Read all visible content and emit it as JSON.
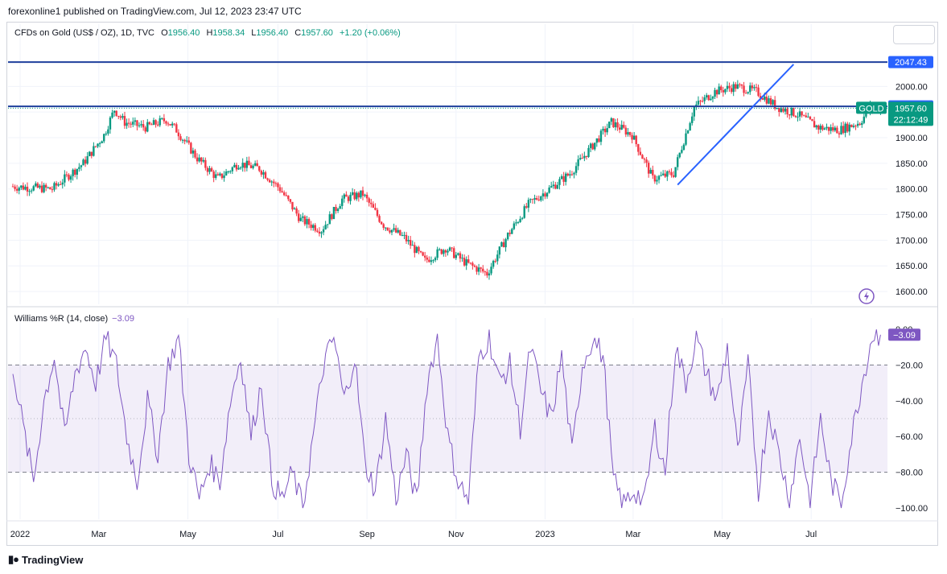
{
  "header": {
    "published": "forexonline1 published on TradingView.com, Jul 12, 2023 23:47 UTC"
  },
  "legend": {
    "symbol": "CFDs on Gold (US$ / OZ), 1D, TVC",
    "o_label": "O",
    "o": "1956.40",
    "h_label": "H",
    "h": "1958.34",
    "l_label": "L",
    "l": "1956.40",
    "c_label": "C",
    "c": "1957.60",
    "change": "+1.20 (+0.06%)"
  },
  "indicator": {
    "name": "Williams %R (14, close)",
    "value": "−3.09"
  },
  "footer": {
    "brand": "TradingView",
    "logo": "tradingview-logo-icon"
  },
  "colors": {
    "up": "#089981",
    "down": "#f23645",
    "line": "#2962ff",
    "hline": "#1e3f9c",
    "wr": "#7e57c2",
    "band": "#7e57c2"
  },
  "chart_data": [
    {
      "type": "candlestick",
      "title": "CFDs on Gold (US$ / OZ), 1D, TVC",
      "x_ticks": [
        "2022",
        "Mar",
        "May",
        "Jul",
        "Sep",
        "Nov",
        "2023",
        "Mar",
        "May",
        "Jul"
      ],
      "y_ticks": [
        "1600.00",
        "1650.00",
        "1700.00",
        "1750.00",
        "1800.00",
        "1850.00",
        "1900.00",
        "1950.00",
        "2000.00"
      ],
      "ylim": [
        1575,
        2090
      ],
      "close_anchors_per_week_index": [
        [
          0,
          1805
        ],
        [
          4,
          1800
        ],
        [
          7,
          1850
        ],
        [
          9,
          1905
        ],
        [
          10,
          1955
        ],
        [
          11,
          1930
        ],
        [
          13,
          1920
        ],
        [
          15,
          1935
        ],
        [
          16,
          1915
        ],
        [
          18,
          1860
        ],
        [
          20,
          1820
        ],
        [
          22,
          1850
        ],
        [
          24,
          1840
        ],
        [
          26,
          1800
        ],
        [
          28,
          1740
        ],
        [
          30,
          1720
        ],
        [
          32,
          1780
        ],
        [
          34,
          1790
        ],
        [
          36,
          1730
        ],
        [
          38,
          1705
        ],
        [
          40,
          1660
        ],
        [
          42,
          1685
        ],
        [
          44,
          1655
        ],
        [
          46,
          1635
        ],
        [
          48,
          1710
        ],
        [
          50,
          1770
        ],
        [
          52,
          1800
        ],
        [
          54,
          1830
        ],
        [
          56,
          1880
        ],
        [
          58,
          1930
        ],
        [
          60,
          1905
        ],
        [
          62,
          1820
        ],
        [
          64,
          1830
        ],
        [
          66,
          1960
        ],
        [
          68,
          1990
        ],
        [
          70,
          2000
        ],
        [
          72,
          1990
        ],
        [
          74,
          1960
        ],
        [
          76,
          1945
        ],
        [
          78,
          1920
        ],
        [
          80,
          1915
        ],
        [
          82,
          1930
        ],
        [
          83,
          1957.6
        ]
      ],
      "horizontal_lines": [
        {
          "price": 2047.43,
          "label": "2047.43"
        },
        {
          "price": 1961.01,
          "label": "1961.01"
        }
      ],
      "trendline": {
        "from_week": 64.2,
        "from_price": 1808,
        "to_week": 75.4,
        "to_price": 2043
      },
      "last_price": {
        "label": "GOLD",
        "price": "1957.60",
        "countdown": "22:12:49"
      },
      "weeks": 84
    },
    {
      "type": "line",
      "title": "Williams %R (14, close)",
      "ylim": [
        -104,
        4
      ],
      "y_ticks": [
        "0.00",
        "−20.00",
        "−40.00",
        "−60.00",
        "−80.00",
        "−100.00"
      ],
      "levels": {
        "upper": -20,
        "mid": -50,
        "lower": -80
      },
      "anchors_per_week_index": [
        [
          0,
          -20
        ],
        [
          1,
          -55
        ],
        [
          2,
          -85
        ],
        [
          3,
          -40
        ],
        [
          4,
          -15
        ],
        [
          5,
          -60
        ],
        [
          6,
          -25
        ],
        [
          7,
          -10
        ],
        [
          8,
          -30
        ],
        [
          9,
          -5
        ],
        [
          10,
          -20
        ],
        [
          11,
          -60
        ],
        [
          12,
          -85
        ],
        [
          13,
          -40
        ],
        [
          14,
          -70
        ],
        [
          15,
          -20
        ],
        [
          16,
          -5
        ],
        [
          17,
          -70
        ],
        [
          18,
          -95
        ],
        [
          19,
          -75
        ],
        [
          20,
          -85
        ],
        [
          21,
          -40
        ],
        [
          22,
          -15
        ],
        [
          23,
          -60
        ],
        [
          24,
          -30
        ],
        [
          25,
          -85
        ],
        [
          26,
          -95
        ],
        [
          27,
          -80
        ],
        [
          28,
          -100
        ],
        [
          29,
          -60
        ],
        [
          30,
          -20
        ],
        [
          31,
          -5
        ],
        [
          32,
          -40
        ],
        [
          33,
          -15
        ],
        [
          34,
          -75
        ],
        [
          35,
          -90
        ],
        [
          36,
          -50
        ],
        [
          37,
          -95
        ],
        [
          38,
          -70
        ],
        [
          39,
          -97
        ],
        [
          40,
          -30
        ],
        [
          41,
          -5
        ],
        [
          42,
          -60
        ],
        [
          43,
          -85
        ],
        [
          44,
          -96
        ],
        [
          45,
          -15
        ],
        [
          46,
          -5
        ],
        [
          47,
          -30
        ],
        [
          48,
          -20
        ],
        [
          49,
          -55
        ],
        [
          50,
          -10
        ],
        [
          51,
          -35
        ],
        [
          52,
          -50
        ],
        [
          53,
          -15
        ],
        [
          54,
          -70
        ],
        [
          55,
          -20
        ],
        [
          56,
          -5
        ],
        [
          57,
          -15
        ],
        [
          58,
          -85
        ],
        [
          59,
          -98
        ],
        [
          60,
          -90
        ],
        [
          61,
          -97
        ],
        [
          62,
          -55
        ],
        [
          63,
          -80
        ],
        [
          64,
          -10
        ],
        [
          65,
          -30
        ],
        [
          66,
          -5
        ],
        [
          67,
          -25
        ],
        [
          68,
          -40
        ],
        [
          69,
          -10
        ],
        [
          70,
          -70
        ],
        [
          71,
          -20
        ],
        [
          72,
          -90
        ],
        [
          73,
          -45
        ],
        [
          74,
          -70
        ],
        [
          75,
          -95
        ],
        [
          76,
          -60
        ],
        [
          77,
          -97
        ],
        [
          78,
          -50
        ],
        [
          79,
          -85
        ],
        [
          80,
          -97
        ],
        [
          81,
          -60
        ],
        [
          82,
          -30
        ],
        [
          83,
          -3.09
        ]
      ],
      "last_value": "−3.09"
    }
  ]
}
